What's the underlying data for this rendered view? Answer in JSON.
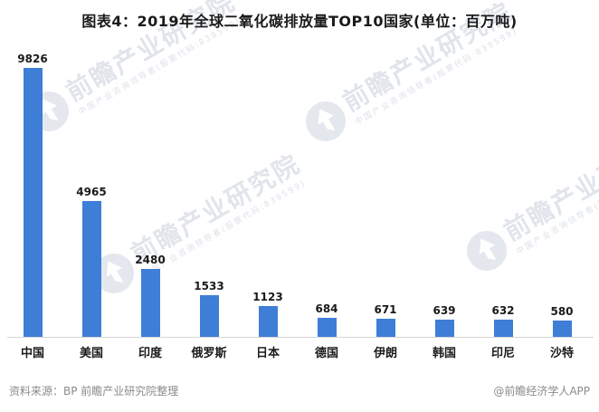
{
  "chart_data": {
    "type": "bar",
    "title": "图表4：2019年全球二氧化碳排放量TOP10国家(单位：百万吨)",
    "categories": [
      "中国",
      "美国",
      "印度",
      "俄罗斯",
      "日本",
      "德国",
      "伊朗",
      "韩国",
      "印尼",
      "沙特"
    ],
    "values": [
      9826,
      4965,
      2480,
      1533,
      1123,
      684,
      671,
      639,
      632,
      580
    ],
    "unit": "百万吨",
    "xlabel": "",
    "ylabel": "",
    "ylim": [
      0,
      10000
    ],
    "grid": false,
    "legend": "none",
    "value_labels": true,
    "bar_color": "#3E7ED7"
  },
  "watermark": {
    "main_text": "前瞻产业研究院",
    "sub_text": "中国产业咨询领导者(股票代码:839599)"
  },
  "footer": {
    "source": "资料来源：BP 前瞻产业研究院整理",
    "credit": "@前瞻经济学人APP"
  },
  "colors": {
    "bar": "#3E7ED7",
    "axis": "#D6D6D6",
    "text": "#1A1A1A",
    "footer_text": "#8A8A8A",
    "watermark": "#B2BCCE"
  }
}
